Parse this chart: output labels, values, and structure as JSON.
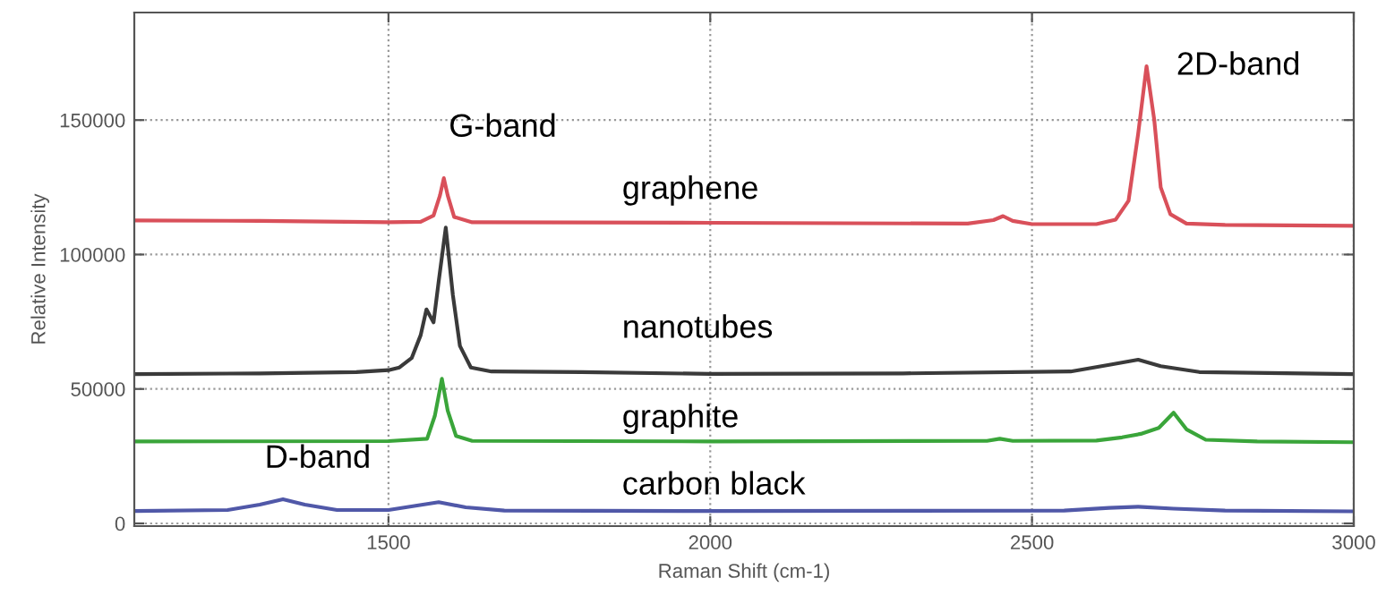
{
  "chart_data": {
    "type": "line",
    "xlabel": "Raman Shift (cm-1)",
    "ylabel": "Relative Intensity",
    "xlim": [
      1105,
      3000
    ],
    "ylim": [
      -1000,
      190000
    ],
    "xticks": [
      1500,
      2000,
      2500,
      3000
    ],
    "yticks": [
      0,
      50000,
      100000,
      150000
    ],
    "grid": true,
    "line_style": "solid",
    "series": [
      {
        "name": "graphene",
        "color": "#d9505a",
        "x": [
          1105,
          1300,
          1500,
          1550,
          1570,
          1580,
          1586,
          1592,
          1602,
          1630,
          2000,
          2400,
          2440,
          2455,
          2470,
          2500,
          2600,
          2630,
          2650,
          2665,
          2678,
          2690,
          2700,
          2715,
          2740,
          2800,
          3000
        ],
        "values": [
          112700,
          112500,
          112000,
          112200,
          114500,
          122000,
          128400,
          122000,
          114000,
          112000,
          111800,
          111500,
          112800,
          114300,
          112500,
          111300,
          111300,
          113000,
          120000,
          145000,
          170000,
          150000,
          125000,
          115000,
          111500,
          111000,
          110700
        ]
      },
      {
        "name": "nanotubes",
        "color": "#3a3a3a",
        "x": [
          1105,
          1300,
          1450,
          1500,
          1517,
          1536,
          1550,
          1559,
          1570,
          1578,
          1589,
          1600,
          1611,
          1628,
          1660,
          1800,
          2000,
          2300,
          2560,
          2620,
          2665,
          2700,
          2760,
          3000
        ],
        "values": [
          55500,
          55800,
          56300,
          57000,
          58000,
          61500,
          70000,
          79600,
          74800,
          90000,
          110000,
          85000,
          66000,
          58000,
          56500,
          56300,
          55600,
          55800,
          56500,
          59000,
          60900,
          58500,
          56300,
          55500
        ]
      },
      {
        "name": "graphite",
        "color": "#3aa53a",
        "x": [
          1105,
          1500,
          1560,
          1572,
          1583,
          1592,
          1605,
          1630,
          2000,
          2430,
          2450,
          2470,
          2600,
          2640,
          2669,
          2697,
          2720,
          2740,
          2770,
          2850,
          3000
        ],
        "values": [
          30500,
          30600,
          31500,
          40000,
          53800,
          42000,
          32500,
          30700,
          30500,
          30700,
          31500,
          30700,
          30800,
          32000,
          33300,
          35500,
          41200,
          35000,
          31100,
          30500,
          30200
        ]
      },
      {
        "name": "carbon black",
        "color": "#5058a8",
        "x": [
          1105,
          1250,
          1300,
          1336,
          1370,
          1420,
          1500,
          1540,
          1578,
          1620,
          1680,
          2000,
          2550,
          2620,
          2665,
          2720,
          2800,
          3000
        ],
        "values": [
          4600,
          5000,
          7000,
          9000,
          7000,
          5000,
          5000,
          6500,
          7900,
          6000,
          4800,
          4600,
          4800,
          5800,
          6200,
          5500,
          4800,
          4500
        ]
      }
    ],
    "annotations": [
      {
        "text": "G-band",
        "x": 1586,
        "y": 128400
      },
      {
        "text": "2D-band",
        "x": 2678,
        "y": 170000
      },
      {
        "text": "D-band",
        "x": 1336,
        "y": 9000
      }
    ]
  }
}
